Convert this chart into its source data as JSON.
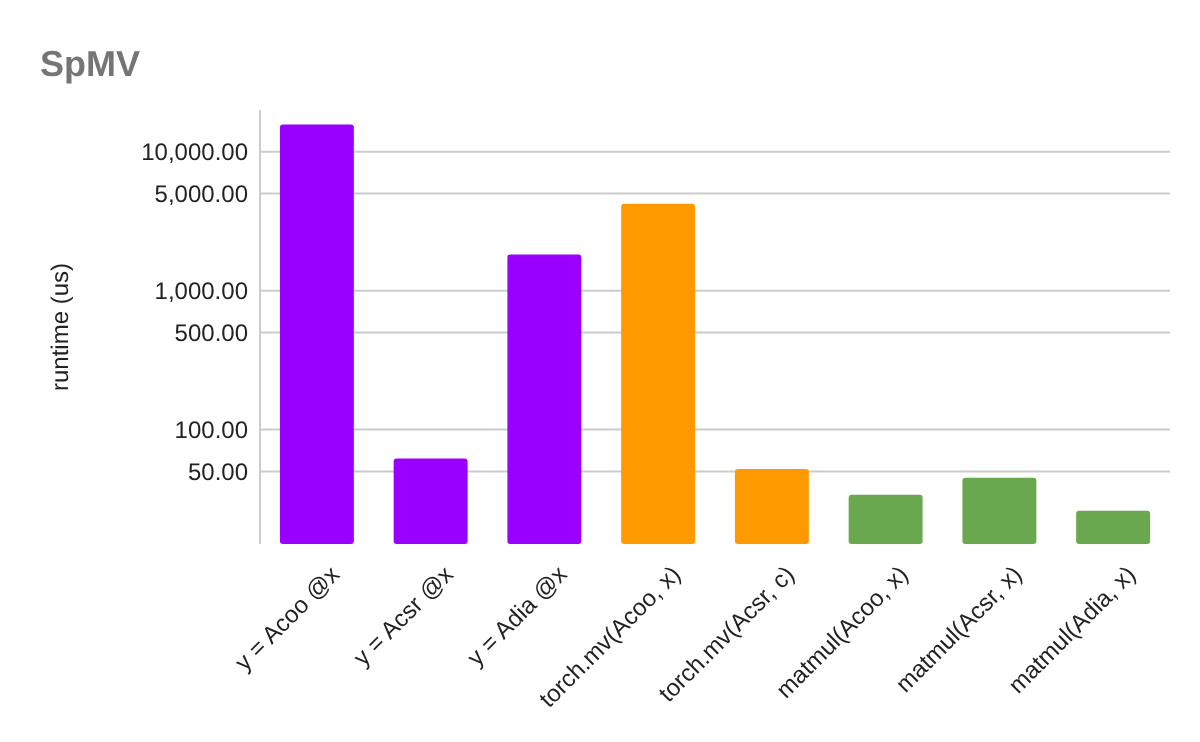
{
  "chart_data": {
    "type": "bar",
    "title": "SpMV",
    "ylabel": "runtime (us)",
    "categories": [
      "y = Acoo @x",
      "y = Acsr @x",
      "y = Adia @x",
      "torch.mv(Acoo, x)",
      "torch.mv(Acsr, c)",
      "matmul(Acoo, x)",
      "matmul(Acsr, x)",
      "matmul(Adia, x)"
    ],
    "values": [
      15700,
      62,
      1820,
      4230,
      52,
      34,
      45,
      26
    ],
    "colors": [
      "#9900ff",
      "#9900ff",
      "#9900ff",
      "#ff9900",
      "#ff9900",
      "#6aa84f",
      "#6aa84f",
      "#6aa84f"
    ],
    "log": "y",
    "ylim": [
      15,
      20000
    ],
    "yticks": [
      {
        "value": 50,
        "label": "50.00"
      },
      {
        "value": 100,
        "label": "100.00"
      },
      {
        "value": 500,
        "label": "500.00"
      },
      {
        "value": 1000,
        "label": "1,000.00"
      },
      {
        "value": 5000,
        "label": "5,000.00"
      },
      {
        "value": 10000,
        "label": "10,000.00"
      }
    ],
    "grid": "y"
  }
}
